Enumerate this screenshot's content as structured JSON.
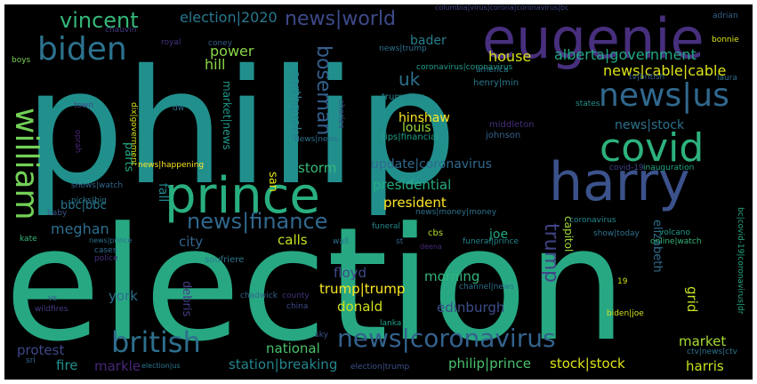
{
  "words": [
    {
      "text": "philip",
      "color": "#21908d"
    },
    {
      "text": "election",
      "color": "#27a883"
    },
    {
      "text": "eugenie",
      "color": "#472f7d"
    },
    {
      "text": "harry",
      "color": "#3b528b"
    },
    {
      "text": "prince",
      "color": "#29af7f"
    },
    {
      "text": "covid",
      "color": "#2db27d"
    },
    {
      "text": "news|us",
      "color": "#31688e"
    },
    {
      "text": "biden",
      "color": "#2c728e"
    },
    {
      "text": "william",
      "color": "#73d056"
    },
    {
      "text": "british",
      "color": "#2e6f8e"
    },
    {
      "text": "news|coronavirus",
      "color": "#33628d"
    },
    {
      "text": "news|world",
      "color": "#3e4a89"
    },
    {
      "text": "news|finance",
      "color": "#31688e"
    },
    {
      "text": "vincent",
      "color": "#35b779"
    },
    {
      "text": "boseman",
      "color": "#35608d"
    },
    {
      "text": "trump",
      "color": "#414487"
    },
    {
      "text": "news|cable|cable",
      "color": "#dde318"
    },
    {
      "text": "alberta|government",
      "color": "#22a785"
    },
    {
      "text": "election|2020",
      "color": "#2a788e"
    },
    {
      "text": "earthquake",
      "color": "#26828e"
    },
    {
      "text": "uk",
      "color": "#2d708e"
    },
    {
      "text": "house",
      "color": "#d8e219"
    },
    {
      "text": "news|stock",
      "color": "#2c728e"
    },
    {
      "text": "update|coronavirus",
      "color": "#306a8e"
    },
    {
      "text": "presidential",
      "color": "#25ac82"
    },
    {
      "text": "president",
      "color": "#fde725"
    },
    {
      "text": "power",
      "color": "#89d548"
    },
    {
      "text": "hill",
      "color": "#8bd646"
    },
    {
      "text": "market|news",
      "color": "#1f998a"
    },
    {
      "text": "hinshaw",
      "color": "#fde725"
    },
    {
      "text": "louis",
      "color": "#9dd93b"
    },
    {
      "text": "storm",
      "color": "#37b878"
    },
    {
      "text": "bader",
      "color": "#277e8e"
    },
    {
      "text": "meghan",
      "color": "#2e6e8e"
    },
    {
      "text": "bbc|bbc",
      "color": "#2a768e"
    },
    {
      "text": "parts",
      "color": "#23a983"
    },
    {
      "text": "fall",
      "color": "#24878e"
    },
    {
      "text": "san",
      "color": "#e2e418"
    },
    {
      "text": "joe",
      "color": "#22a884"
    },
    {
      "text": "calls",
      "color": "#c8e020"
    },
    {
      "text": "city",
      "color": "#32658e"
    },
    {
      "text": "capitol",
      "color": "#a0da39"
    },
    {
      "text": "elizabeth",
      "color": "#2e6d8e"
    },
    {
      "text": "grid",
      "color": "#c5e021"
    },
    {
      "text": "floyd",
      "color": "#3e4989"
    },
    {
      "text": "morning",
      "color": "#31b57b"
    },
    {
      "text": "york",
      "color": "#2e6f8e"
    },
    {
      "text": "debris",
      "color": "#433e85"
    },
    {
      "text": "trump|trump",
      "color": "#fde725"
    },
    {
      "text": "donald",
      "color": "#d0e11c"
    },
    {
      "text": "edinburgh",
      "color": "#3d4d8a"
    },
    {
      "text": "protest",
      "color": "#3f4788"
    },
    {
      "text": "national",
      "color": "#4ac16d"
    },
    {
      "text": "market",
      "color": "#a8db34"
    },
    {
      "text": "harris",
      "color": "#c8e020"
    },
    {
      "text": "fire",
      "color": "#21918c"
    },
    {
      "text": "markle",
      "color": "#482677"
    },
    {
      "text": "station|breaking",
      "color": "#24868e"
    },
    {
      "text": "philip|prince",
      "color": "#4ac16d"
    },
    {
      "text": "stock|stock",
      "color": "#dde318"
    },
    {
      "text": "tips|financial",
      "color": "#1fa188"
    },
    {
      "text": "middleton",
      "color": "#472d7b"
    },
    {
      "text": "johnson",
      "color": "#33638d"
    },
    {
      "text": "trump|joe",
      "color": "#27808e"
    },
    {
      "text": "henry|min",
      "color": "#2a778e"
    },
    {
      "text": "news|news",
      "color": "#2c718e"
    },
    {
      "text": "news|happening",
      "color": "#fde725"
    },
    {
      "text": "dix|government",
      "color": "#dde318"
    },
    {
      "text": "picks|big",
      "color": "#2a788e"
    },
    {
      "text": "shows|watch",
      "color": "#31688e"
    },
    {
      "text": "coronavirus|coronavirus",
      "color": "#1f9e89"
    },
    {
      "text": "news|trump",
      "color": "#2c728e"
    },
    {
      "text": "columbia|virus|corona|coronavirus|bc",
      "color": "#404387"
    },
    {
      "text": "adrian",
      "color": "#33638d"
    },
    {
      "text": "bonnie",
      "color": "#d8e219"
    },
    {
      "text": "chauvin",
      "color": "#443983"
    },
    {
      "text": "royal",
      "color": "#46327e"
    },
    {
      "text": "coney",
      "color": "#355f8d"
    },
    {
      "text": "boys",
      "color": "#7ad151"
    },
    {
      "text": "america",
      "color": "#2a788e"
    },
    {
      "text": "tv|british",
      "color": "#30698e"
    },
    {
      "text": "laura",
      "color": "#2f6c8e"
    },
    {
      "text": "charles",
      "color": "#3b518b"
    },
    {
      "text": "states",
      "color": "#21918c"
    },
    {
      "text": "oprah",
      "color": "#482576"
    },
    {
      "text": "town",
      "color": "#3e4989"
    },
    {
      "text": "dw",
      "color": "#2c728e"
    },
    {
      "text": "covid-19",
      "color": "#404588"
    },
    {
      "text": "inauguration",
      "color": "#22a785"
    },
    {
      "text": "news|money|money",
      "color": "#2c728e"
    },
    {
      "text": "coronavirus",
      "color": "#23898e"
    },
    {
      "text": "volcano",
      "color": "#1f9a8a"
    },
    {
      "text": "bc|covid-19|coronavirus|dr",
      "color": "#22a884"
    },
    {
      "text": "baby",
      "color": "#39568c"
    },
    {
      "text": "kate",
      "color": "#35b779"
    },
    {
      "text": "news|prince",
      "color": "#2c728e"
    },
    {
      "text": "cases",
      "color": "#2f6c8e"
    },
    {
      "text": "police",
      "color": "#46307e"
    },
    {
      "text": "soufriere",
      "color": "#2a788e"
    },
    {
      "text": "wall",
      "color": "#2c718e"
    },
    {
      "text": "funeral",
      "color": "#24868e"
    },
    {
      "text": "st",
      "color": "#33638d"
    },
    {
      "text": "cbs",
      "color": "#b5de2b"
    },
    {
      "text": "deena",
      "color": "#472a7a"
    },
    {
      "text": "funeral|prince",
      "color": "#25848e"
    },
    {
      "text": "show|today",
      "color": "#2c728e"
    },
    {
      "text": "online|watch",
      "color": "#35b779"
    },
    {
      "text": "19",
      "color": "#d0e11c"
    },
    {
      "text": "vs",
      "color": "#39568c"
    },
    {
      "text": "wildfires",
      "color": "#443a83"
    },
    {
      "text": "chadwick",
      "color": "#33638d"
    },
    {
      "text": "county",
      "color": "#46327e"
    },
    {
      "text": "china",
      "color": "#3e4989"
    },
    {
      "text": "lanka",
      "color": "#1fa187"
    },
    {
      "text": "channel|news",
      "color": "#2c728e"
    },
    {
      "text": "biden|joe",
      "color": "#d0e11c"
    },
    {
      "text": "sky",
      "color": "#3b528b"
    },
    {
      "text": "sri",
      "color": "#31688e"
    },
    {
      "text": "election|us",
      "color": "#2a788e"
    },
    {
      "text": "election|trump",
      "color": "#3b528b"
    },
    {
      "text": "ctv|news|ctv",
      "color": "#2c728e"
    }
  ]
}
